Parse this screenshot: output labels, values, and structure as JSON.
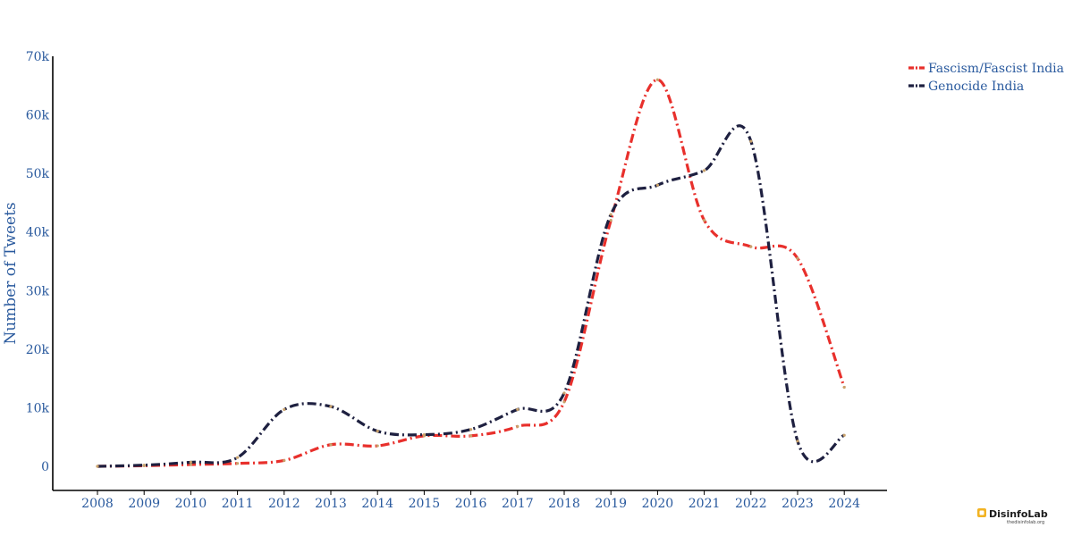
{
  "chart_data": {
    "type": "line",
    "title": "",
    "xlabel": "",
    "ylabel": "Number of Tweets",
    "ylim": [
      -4000,
      70000
    ],
    "x": [
      "2008",
      "2009",
      "2010",
      "2011",
      "2012",
      "2013",
      "2014",
      "2015",
      "2016",
      "2017",
      "2018",
      "2019",
      "2020",
      "2021",
      "2022",
      "2023",
      "2024"
    ],
    "yticks": [
      0,
      10000,
      20000,
      30000,
      40000,
      50000,
      60000,
      70000
    ],
    "ytick_labels": [
      "0",
      "10k",
      "20k",
      "30k",
      "40k",
      "50k",
      "60k",
      "70k"
    ],
    "grid": false,
    "legend_position": "top-right",
    "series": [
      {
        "name": "Fascism/Fascist India",
        "color": "#e8302c",
        "values": [
          0,
          100,
          300,
          500,
          1000,
          3700,
          3500,
          5200,
          5200,
          6800,
          11000,
          42000,
          66000,
          42000,
          37500,
          35500,
          13500
        ]
      },
      {
        "name": "Genocide India",
        "color": "#1e2040",
        "values": [
          0,
          200,
          700,
          1500,
          9700,
          10200,
          6000,
          5400,
          6300,
          9700,
          12500,
          43000,
          48000,
          50500,
          55500,
          4300,
          5300
        ]
      }
    ]
  },
  "logo": {
    "name": "DisinfoLab",
    "url": "thedisinfolab.org"
  }
}
